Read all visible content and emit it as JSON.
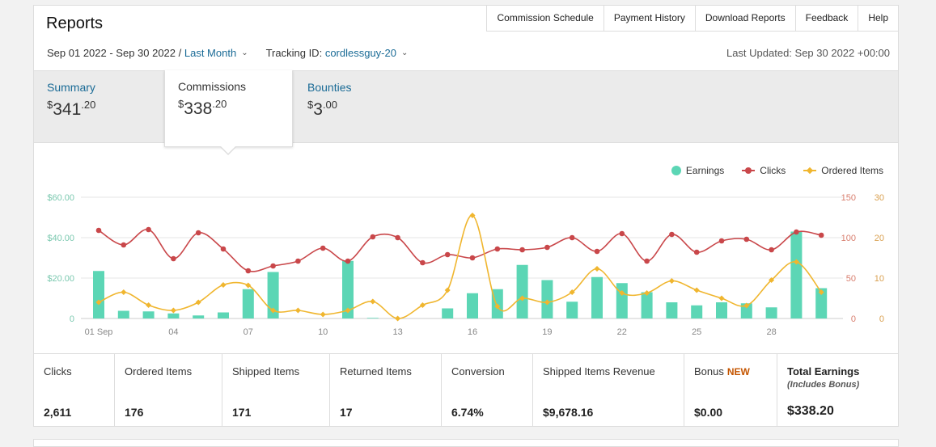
{
  "header": {
    "title": "Reports",
    "nav": [
      "Commission Schedule",
      "Payment History",
      "Download Reports",
      "Feedback",
      "Help"
    ]
  },
  "filters": {
    "date_range": "Sep 01 2022 - Sep 30 2022 /",
    "period": "Last Month",
    "tracking_label": "Tracking ID:",
    "tracking_id": "cordlessguy-20",
    "last_updated": "Last Updated: Sep 30 2022 +00:00"
  },
  "tabs": [
    {
      "label": "Summary",
      "currency": "$",
      "whole": "341",
      "cents": ".20"
    },
    {
      "label": "Commissions",
      "currency": "$",
      "whole": "338",
      "cents": ".20"
    },
    {
      "label": "Bounties",
      "currency": "$",
      "whole": "3",
      "cents": ".00"
    }
  ],
  "colors": {
    "earnings": "#5cd6b5",
    "clicks": "#c9474a",
    "ordered": "#f0b62f"
  },
  "chart_data": {
    "type": "bar+line",
    "x": [
      "01 Sep",
      "02",
      "03",
      "04",
      "05",
      "06",
      "07",
      "08",
      "09",
      "10",
      "11",
      "12",
      "13",
      "14",
      "15",
      "16",
      "17",
      "18",
      "19",
      "20",
      "21",
      "22",
      "23",
      "24",
      "25",
      "26",
      "27",
      "28",
      "29",
      "30"
    ],
    "x_tick_labels": [
      "01 Sep",
      "04",
      "07",
      "10",
      "13",
      "16",
      "19",
      "22",
      "25",
      "28"
    ],
    "legend": [
      "Earnings",
      "Clicks",
      "Ordered Items"
    ],
    "left_axis": {
      "ticks": [
        "0",
        "$20.00",
        "$40.00",
        "$60.00"
      ],
      "ylim": [
        0,
        60
      ]
    },
    "right_axis_clicks": {
      "ticks": [
        "0",
        "50",
        "100",
        "150"
      ],
      "ylim": [
        0,
        150
      ]
    },
    "right_axis_ordered": {
      "ticks": [
        "0",
        "10",
        "20",
        "30"
      ],
      "ylim": [
        0,
        30
      ]
    },
    "series": [
      {
        "name": "Earnings",
        "type": "bar",
        "values": [
          23.5,
          3.8,
          3.5,
          2.5,
          1.5,
          3.0,
          14.5,
          23.0,
          0,
          0,
          28.5,
          0.3,
          0,
          0,
          5.0,
          12.5,
          14.5,
          26.5,
          19.0,
          8.3,
          20.5,
          17.5,
          13.0,
          8.0,
          6.5,
          8.0,
          7.5,
          5.5,
          43.0,
          15.0
        ]
      },
      {
        "name": "Clicks",
        "type": "line",
        "values": [
          109,
          91,
          110,
          74,
          106,
          86,
          59,
          65,
          71,
          87,
          71,
          101,
          100,
          69,
          79,
          75,
          86,
          85,
          88,
          100,
          83,
          105,
          71,
          104,
          82,
          96,
          98,
          85,
          107,
          103
        ]
      },
      {
        "name": "Ordered Items",
        "type": "line",
        "values": [
          4,
          6.5,
          3.3,
          2,
          4,
          8.3,
          8.2,
          2,
          2,
          1,
          2,
          4.2,
          0,
          3.3,
          7,
          25.5,
          3,
          5,
          4,
          6.5,
          12.3,
          6.3,
          6.3,
          9.3,
          7,
          5,
          3.2,
          9.5,
          14,
          6.5
        ]
      }
    ]
  },
  "stats": [
    {
      "label": "Clicks",
      "value": "2,611"
    },
    {
      "label": "Ordered Items",
      "value": "176"
    },
    {
      "label": "Shipped Items",
      "value": "171"
    },
    {
      "label": "Returned Items",
      "value": "17"
    },
    {
      "label": "Conversion",
      "value": "6.74%"
    },
    {
      "label": "Shipped Items Revenue",
      "value": "$9,678.16"
    },
    {
      "label": "Bonus",
      "badge": "NEW",
      "value": "$0.00"
    },
    {
      "label": "Total Earnings",
      "note": "(Includes Bonus)",
      "value": "$338.20"
    }
  ]
}
